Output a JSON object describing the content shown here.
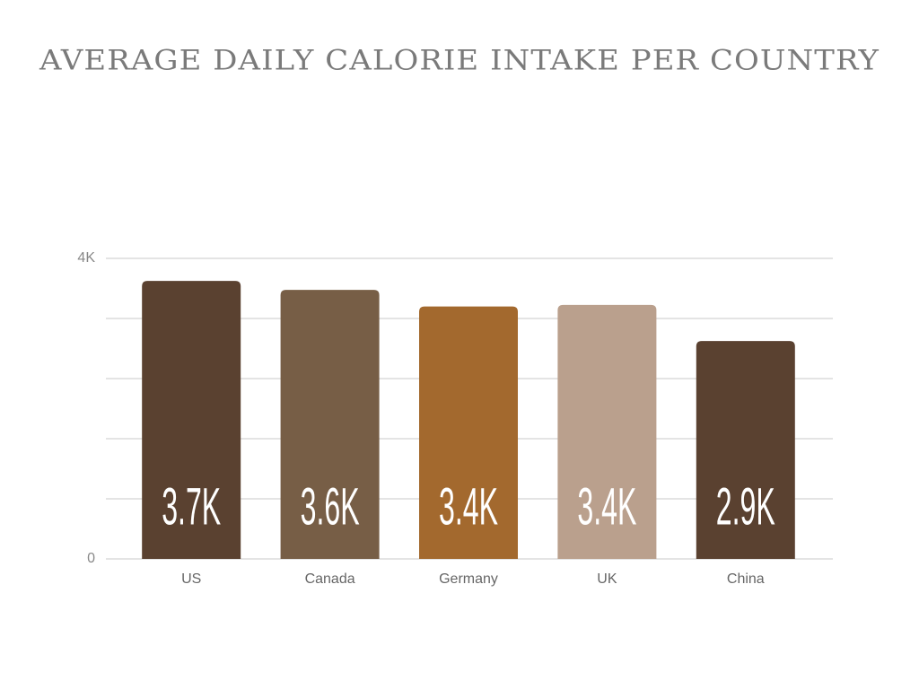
{
  "chart_data": {
    "type": "bar",
    "title": "AVERAGE DAILY CALORIE INTAKE PER COUNTRY",
    "categories": [
      "US",
      "Canada",
      "Germany",
      "UK",
      "China"
    ],
    "values": [
      3700,
      3580,
      3360,
      3380,
      2900
    ],
    "value_labels": [
      "3.7K",
      "3.6K",
      "3.4K",
      "3.4K",
      "2.9K"
    ],
    "colors": [
      "#5a4130",
      "#775e46",
      "#a3692e",
      "#baa08d",
      "#5a4130"
    ],
    "ylim": [
      0,
      4000
    ],
    "yticks": [
      0,
      {
        "value": 800,
        "label": null
      },
      {
        "value": 1600,
        "label": null
      },
      {
        "value": 2400,
        "label": null
      },
      {
        "value": 3200,
        "label": null
      },
      {
        "value": 4000,
        "label": "4K"
      }
    ],
    "grid": true
  }
}
